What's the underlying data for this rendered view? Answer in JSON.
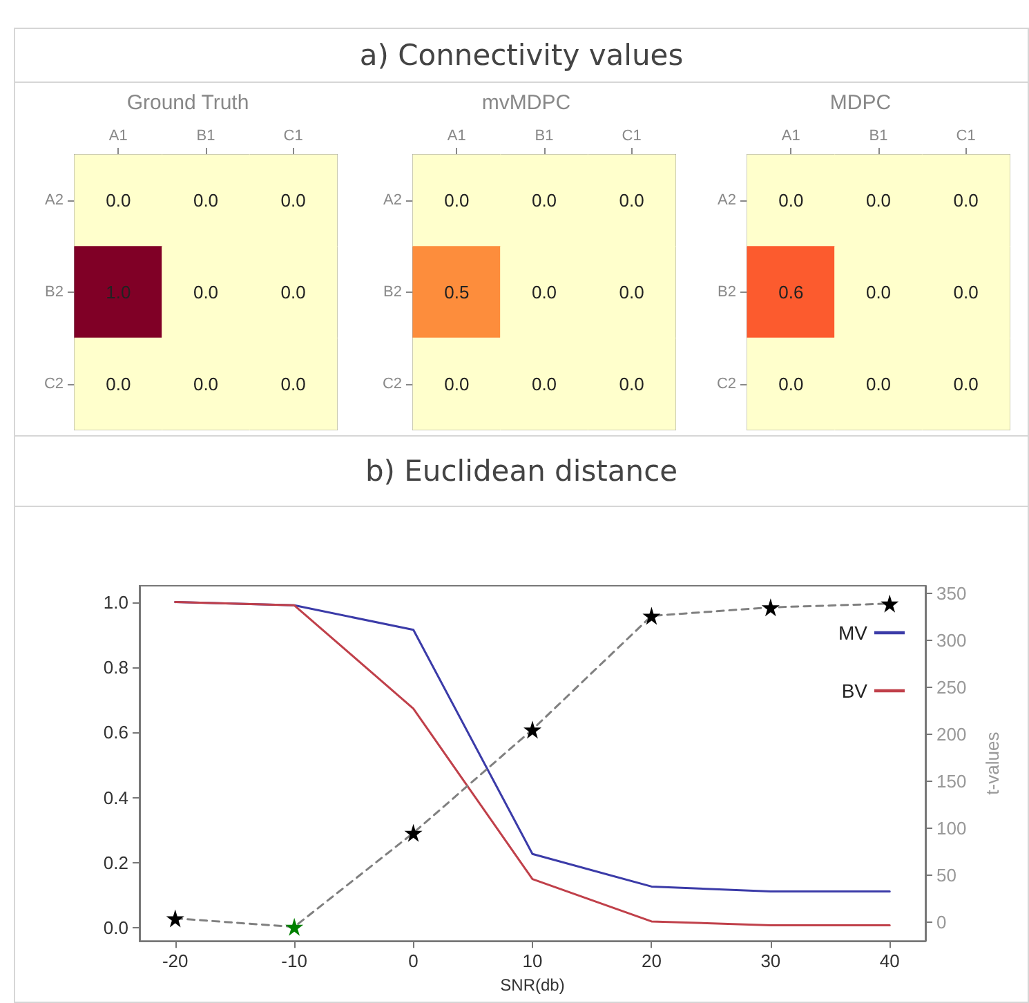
{
  "chart_data": [
    {
      "type": "heatmap",
      "title": "Ground Truth",
      "annotations": [
        "a) Connectivity values"
      ],
      "categories": [
        "A1",
        "B1",
        "C1"
      ],
      "y_categories": [
        "A2",
        "B2",
        "C2"
      ],
      "cells": [
        [
          0,
          0,
          0
        ],
        [
          1,
          0,
          0
        ],
        [
          0,
          0,
          0
        ]
      ],
      "cell_labels": [
        [
          "0.0",
          "0.0",
          "0.0"
        ],
        [
          "1.0",
          "0.0",
          "0.0"
        ],
        [
          "0.0",
          "0.0",
          "0.0"
        ]
      ]
    },
    {
      "type": "heatmap",
      "title": "mvMDPC",
      "categories": [
        "A1",
        "B1",
        "C1"
      ],
      "y_categories": [
        "A2",
        "B2",
        "C2"
      ],
      "cells": [
        [
          0,
          0,
          0
        ],
        [
          0.5,
          0,
          0
        ],
        [
          0,
          0,
          0
        ]
      ],
      "cell_labels": [
        [
          "0.0",
          "0.0",
          "0.0"
        ],
        [
          "0.5",
          "0.0",
          "0.0"
        ],
        [
          "0.0",
          "0.0",
          "0.0"
        ]
      ]
    },
    {
      "type": "heatmap",
      "title": "MDPC",
      "categories": [
        "A1",
        "B1",
        "C1"
      ],
      "y_categories": [
        "A2",
        "B2",
        "C2"
      ],
      "cells": [
        [
          0,
          0,
          0
        ],
        [
          0.6,
          0,
          0
        ],
        [
          0,
          0,
          0
        ]
      ],
      "cell_labels": [
        [
          "0.0",
          "0.0",
          "0.0"
        ],
        [
          "0.6",
          "0.0",
          "0.0"
        ],
        [
          "0.0",
          "0.0",
          "0.0"
        ]
      ]
    },
    {
      "type": "line",
      "title": "b) Euclidean distance",
      "xlabel": "SNR(db)",
      "y2label": "t-values",
      "x": [
        -20,
        -10,
        0,
        10,
        20,
        30,
        40
      ],
      "series": [
        {
          "name": "MV",
          "color": "#3b3ba8",
          "values": [
            1.0,
            0.99,
            0.915,
            0.227,
            0.127,
            0.112,
            0.112
          ]
        },
        {
          "name": "BV",
          "color": "#c0404a",
          "values": [
            1.0,
            0.99,
            0.673,
            0.15,
            0.02,
            0.008,
            0.008
          ]
        },
        {
          "color": "#808080",
          "axis": "y2",
          "line_style": "dashed",
          "marker": "star",
          "colors": [
            "#000000",
            "#008000",
            "#000000",
            "#000000",
            "#000000",
            "#000000",
            "#000000"
          ],
          "values": [
            4,
            -5,
            95,
            205,
            326,
            335,
            339
          ]
        }
      ],
      "xlim": [
        -23,
        43
      ],
      "xticks": [
        -20,
        -10,
        0,
        10,
        20,
        30,
        40
      ],
      "ylim": [
        -0.04,
        1.05
      ],
      "yticks": [
        {
          "value": 0,
          "label": "0.0"
        },
        0.2,
        0.4,
        0.6,
        0.8,
        {
          "value": 1,
          "label": "1.0"
        }
      ],
      "y2lim": [
        -20,
        358
      ],
      "y2ticks": [
        0,
        50,
        100,
        150,
        200,
        250,
        300,
        350
      ],
      "marker": "none",
      "line_style": "solid",
      "legend": "top right",
      "grid": false
    }
  ]
}
